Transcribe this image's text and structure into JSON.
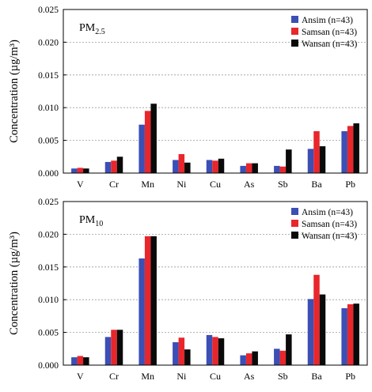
{
  "chart_data": [
    {
      "type": "bar",
      "panel_label": "PM",
      "panel_label_sub": "2.5",
      "ylabel": "Concentration (µg/m³)",
      "ylim": [
        0,
        0.025
      ],
      "yticks": [
        "0.000",
        "0.005",
        "0.010",
        "0.015",
        "0.020",
        "0.025"
      ],
      "grid": true,
      "legend_position": "top-right",
      "categories": [
        "V",
        "Cr",
        "Mn",
        "Ni",
        "Cu",
        "As",
        "Sb",
        "Ba",
        "Pb"
      ],
      "series": [
        {
          "name": "Ansim",
          "legend_note": "(n=43)",
          "color": "#3b4fb5",
          "values": [
            0.0007,
            0.0017,
            0.0074,
            0.002,
            0.002,
            0.0011,
            0.0011,
            0.0037,
            0.0064
          ]
        },
        {
          "name": "Samsan",
          "legend_note": "(n=43)",
          "color": "#e8262b",
          "values": [
            0.0008,
            0.0019,
            0.0095,
            0.0029,
            0.0019,
            0.0015,
            0.001,
            0.0064,
            0.0072
          ]
        },
        {
          "name": "Wansan",
          "legend_note": "(n=43)",
          "color": "#0a0a0a",
          "values": [
            0.0007,
            0.0025,
            0.0106,
            0.0016,
            0.0022,
            0.0015,
            0.0036,
            0.0041,
            0.0076
          ]
        }
      ]
    },
    {
      "type": "bar",
      "panel_label": "PM",
      "panel_label_sub": "10",
      "ylabel": "Concentration (µg/m³)",
      "ylim": [
        0,
        0.025
      ],
      "yticks": [
        "0.000",
        "0.005",
        "0.010",
        "0.015",
        "0.020",
        "0.025"
      ],
      "grid": true,
      "legend_position": "top-right",
      "categories": [
        "V",
        "Cr",
        "Mn",
        "Ni",
        "Cu",
        "As",
        "Sb",
        "Ba",
        "Pb"
      ],
      "series": [
        {
          "name": "Ansim",
          "legend_note": "(n=43)",
          "color": "#3b4fb5",
          "values": [
            0.0012,
            0.0043,
            0.0163,
            0.0035,
            0.0046,
            0.0015,
            0.0025,
            0.0101,
            0.0087
          ]
        },
        {
          "name": "Samsan",
          "legend_note": "(n=43)",
          "color": "#e8262b",
          "values": [
            0.0014,
            0.0054,
            0.0197,
            0.0042,
            0.0043,
            0.0018,
            0.0022,
            0.0138,
            0.0093
          ]
        },
        {
          "name": "Wansan",
          "legend_note": "(n=43)",
          "color": "#0a0a0a",
          "values": [
            0.0012,
            0.0054,
            0.0197,
            0.0024,
            0.0041,
            0.0021,
            0.0047,
            0.0108,
            0.0094
          ]
        }
      ]
    }
  ]
}
